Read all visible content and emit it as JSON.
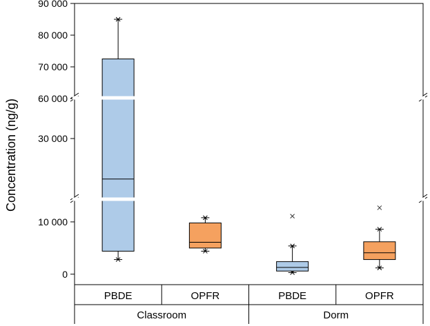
{
  "chart_data": {
    "type": "box",
    "ylabel": "Concentration (ng/g)",
    "y_axis": {
      "scale": "broken",
      "segments": [
        {
          "range": [
            -2000,
            15000
          ]
        },
        {
          "range": [
            15000,
            40000
          ]
        },
        {
          "range": [
            60000,
            90000
          ]
        }
      ],
      "tick_values": [
        0,
        10000,
        30000,
        60000,
        70000,
        80000,
        90000
      ],
      "tick_labels": [
        "0",
        "10 000",
        "30 000",
        "60 000",
        "70 000",
        "80 000",
        "90 000"
      ]
    },
    "groups": [
      "Classroom",
      "Dorm"
    ],
    "categories": [
      "PBDE",
      "OPFR",
      "PBDE",
      "OPFR"
    ],
    "colors": {
      "PBDE": "#aecbe8",
      "OPFR": "#f5a15f"
    },
    "boxes": [
      {
        "group": "Classroom",
        "category": "PBDE",
        "min": 2800,
        "q1": 4400,
        "median": 19500,
        "q3": 72500,
        "max": 85000,
        "outliers": []
      },
      {
        "group": "Classroom",
        "category": "OPFR",
        "min": 4400,
        "q1": 5000,
        "median": 6100,
        "q3": 9800,
        "max": 10800,
        "outliers": []
      },
      {
        "group": "Dorm",
        "category": "PBDE",
        "min": 300,
        "q1": 600,
        "median": 1300,
        "q3": 2400,
        "max": 5400,
        "outliers": [
          11100
        ]
      },
      {
        "group": "Dorm",
        "category": "OPFR",
        "min": 1200,
        "q1": 2800,
        "median": 4100,
        "q3": 6200,
        "max": 8600,
        "outliers": [
          12700
        ]
      }
    ]
  }
}
